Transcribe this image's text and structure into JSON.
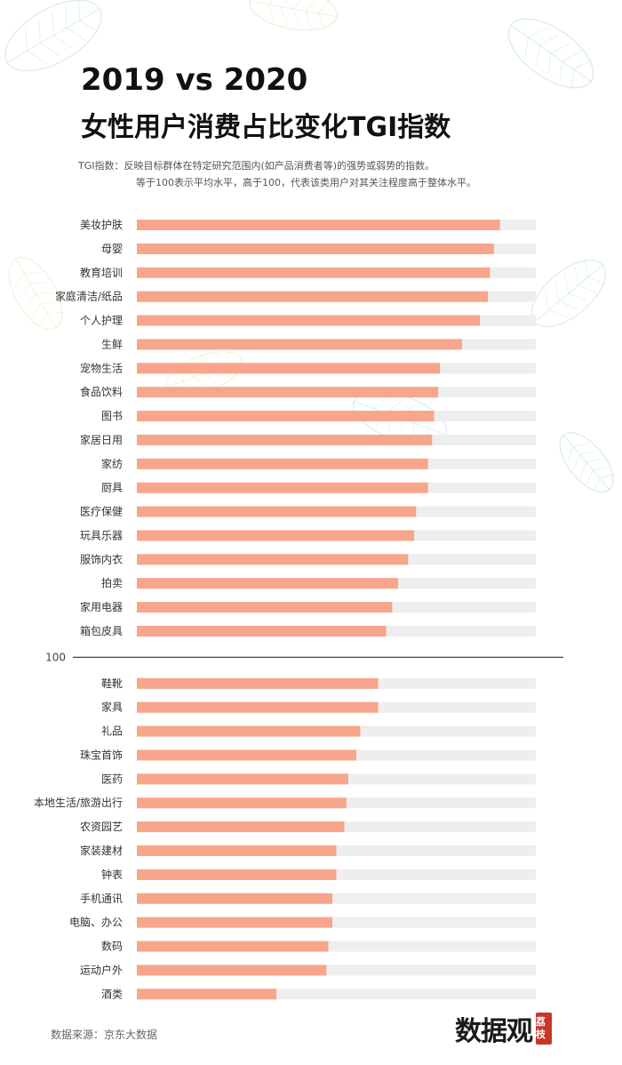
{
  "title_line1": "2019 vs 2020",
  "title_line2": "女性用户消费占比变化TGI指数",
  "desc_line1": "TGI指数：反映目标群体在特定研究范围内(如产品消费者等)的强势或弱势的指数。",
  "desc_line2": "等于100表示平均水平，高于100，代表该类用户对其关注程度高于整体水平。",
  "source": "数据来源：京东大数据",
  "logo": {
    "text": "数据观",
    "seal": "荔枝"
  },
  "colors": {
    "bar": "#f7a68c",
    "track": "#eeeeee",
    "refline": "#444444"
  },
  "chart_data": {
    "type": "bar",
    "orientation": "horizontal",
    "reference_line": {
      "value": 100,
      "label": "100"
    },
    "categories": [
      "美妆护肤",
      "母婴",
      "教育培训",
      "家庭清洁/纸品",
      "个人护理",
      "生鲜",
      "宠物生活",
      "食品饮料",
      "图书",
      "家居日用",
      "家纺",
      "厨具",
      "医疗保健",
      "玩具乐器",
      "服饰内衣",
      "拍卖",
      "家用电器",
      "箱包皮具",
      "鞋靴",
      "家具",
      "礼品",
      "珠宝首饰",
      "医药",
      "本地生活/旅游出行",
      "农资园艺",
      "家装建材",
      "钟表",
      "手机通讯",
      "电脑、办公",
      "数码",
      "运动户外",
      "酒类"
    ],
    "values": [
      0.91,
      0.895,
      0.885,
      0.88,
      0.86,
      0.815,
      0.76,
      0.755,
      0.745,
      0.74,
      0.73,
      0.73,
      0.7,
      0.695,
      0.68,
      0.655,
      0.64,
      0.625,
      0.605,
      0.605,
      0.56,
      0.55,
      0.53,
      0.525,
      0.52,
      0.5,
      0.5,
      0.49,
      0.49,
      0.48,
      0.475,
      0.35
    ],
    "value_note": "bar length as fraction of full track",
    "legend": "none",
    "grid": false
  }
}
